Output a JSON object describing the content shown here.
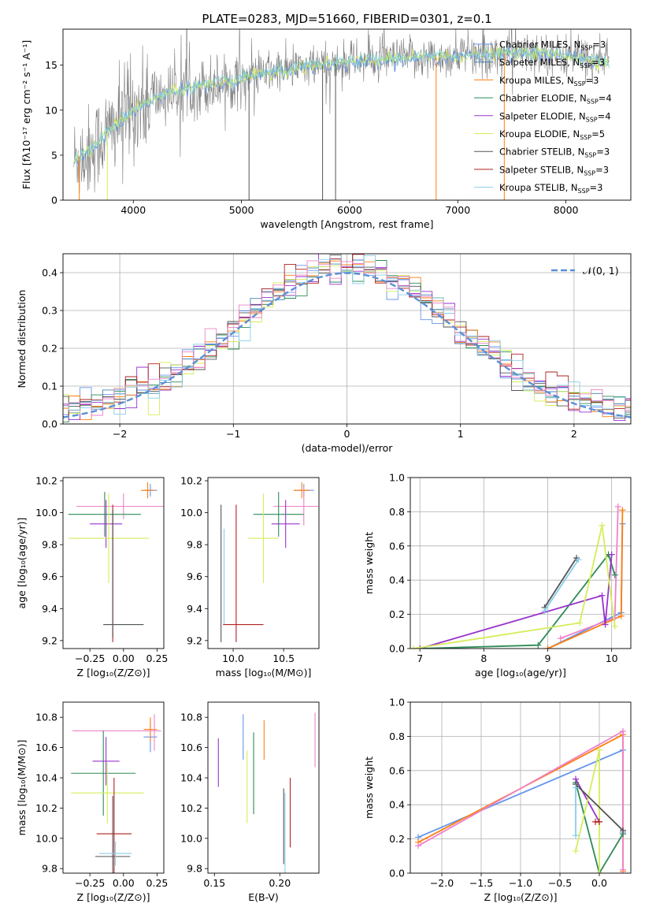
{
  "chart_data": [
    {
      "id": "spectrum",
      "type": "line",
      "title": "PLATE=0283, MJD=51660, FIBERID=0301, z=0.1",
      "xlabel": "wavelength [Angstrom, rest frame]",
      "ylabel": "Flux [fλ10⁻¹⁷ erg cm⁻² s⁻¹ A⁻¹]",
      "xlim": [
        3350,
        8600
      ],
      "ylim": [
        0,
        19
      ],
      "xticks": [
        4000,
        5000,
        6000,
        7000,
        8000
      ],
      "yticks": [
        0,
        5,
        10,
        15
      ],
      "grid": false,
      "legend_position": "top-right",
      "legend": [
        {
          "label": "Chabrier MILES, N",
          "sub": "SSP",
          "suffix": "=3",
          "color": "#6495ed"
        },
        {
          "label": "Salpeter MILES, N",
          "sub": "SSP",
          "suffix": "=3",
          "color": "#4682b4"
        },
        {
          "label": "Kroupa MILES, N",
          "sub": "SSP",
          "suffix": "=3",
          "color": "#ff7f0e"
        },
        {
          "label": "Chabrier ELODIE, N",
          "sub": "SSP",
          "suffix": "=4",
          "color": "#2e8b57"
        },
        {
          "label": "Salpeter ELODIE, N",
          "sub": "SSP",
          "suffix": "=4",
          "color": "#9932cc"
        },
        {
          "label": "Kroupa ELODIE, N",
          "sub": "SSP",
          "suffix": "=5",
          "color": "#d4ed5a"
        },
        {
          "label": "Chabrier STELIB, N",
          "sub": "SSP",
          "suffix": "=3",
          "color": "#555555"
        },
        {
          "label": "Salpeter STELIB, N",
          "sub": "SSP",
          "suffix": "=3",
          "color": "#b22222"
        },
        {
          "label": "Kroupa STELIB, N",
          "sub": "SSP",
          "suffix": "=3",
          "color": "#87ceeb"
        }
      ],
      "data_color": "#808080",
      "model_colors": [
        "#6495ed",
        "#d4ed5a",
        "#7fd6d6"
      ],
      "continuum": {
        "x": [
          3450,
          3600,
          3800,
          4000,
          4200,
          4500,
          4800,
          5000,
          5300,
          5600,
          6000,
          6300,
          6600,
          7000,
          7400,
          7700,
          8000,
          8200,
          8400
        ],
        "y": [
          4.5,
          5.5,
          8.0,
          10.0,
          11.3,
          12.5,
          13.0,
          13.5,
          14.2,
          14.8,
          15.3,
          15.6,
          15.8,
          16.0,
          16.3,
          16.4,
          16.1,
          15.7,
          15.2
        ]
      }
    },
    {
      "id": "residuals",
      "type": "histogram",
      "xlabel": "(data-model)/error",
      "ylabel": "Normed distribution",
      "xlim": [
        -2.5,
        2.5
      ],
      "ylim": [
        0,
        0.45
      ],
      "xticks": [
        -2,
        -1,
        0,
        1,
        2
      ],
      "yticks": [
        0.0,
        0.1,
        0.2,
        0.3,
        0.4
      ],
      "grid": true,
      "legend_position": "top-right",
      "legend": [
        {
          "label": "𝒩(0, 1)",
          "color": "#5b8fd6"
        }
      ],
      "bin_width": 0.1,
      "series_colors": [
        "#6495ed",
        "#4682b4",
        "#ff7f0e",
        "#2e8b57",
        "#9932cc",
        "#d4ed5a",
        "#555555",
        "#b22222",
        "#87ceeb",
        "#ee82c8"
      ]
    },
    {
      "id": "age-vs-Z",
      "type": "errorbar",
      "xlabel": "Z [log₁₀(Z/Z⊙)]",
      "ylabel": "age  [log₁₀(age/yr)]",
      "xlim": [
        -0.45,
        0.3
      ],
      "ylim": [
        9.15,
        10.22
      ],
      "xticks": [
        -0.25,
        0.0,
        0.25
      ],
      "yticks": [
        9.2,
        9.4,
        9.6,
        9.8,
        10.0,
        10.2
      ],
      "points": [
        {
          "x": 0.2,
          "y": 10.14,
          "xerr": 0.05,
          "yerr": 0.04,
          "color": "#6495ed"
        },
        {
          "x": 0.18,
          "y": 10.14,
          "xerr": 0.05,
          "yerr": 0.05,
          "color": "#ff7f0e"
        },
        {
          "x": 0.0,
          "y": 10.04,
          "xerr": 0.35,
          "yerr": 0.08,
          "color": "#ee82c8"
        },
        {
          "x": -0.14,
          "y": 9.99,
          "xerr": 0.27,
          "yerr": 0.14,
          "color": "#2e8b57"
        },
        {
          "x": -0.13,
          "y": 9.93,
          "xerr": 0.12,
          "yerr": 0.15,
          "color": "#9932cc"
        },
        {
          "x": -0.11,
          "y": 9.84,
          "xerr": 0.3,
          "yerr": 0.28,
          "color": "#d4ed5a"
        },
        {
          "x": -0.08,
          "y": 9.62,
          "xerr": 0.0,
          "yerr": 0.43,
          "color": "#b22222"
        },
        {
          "x": -0.08,
          "y": 9.62,
          "xerr": 0.0,
          "yerr": 0.4,
          "color": "#555555"
        },
        {
          "x": 0.0,
          "y": 9.3,
          "xerr": 0.15,
          "yerr": 0.0,
          "color": "#87ceeb"
        },
        {
          "x": 0.0,
          "y": 9.3,
          "xerr": 0.15,
          "yerr": 0.0,
          "color": "#555555"
        }
      ]
    },
    {
      "id": "age-vs-mass",
      "type": "errorbar",
      "xlabel": "mass [log₁₀(M/M⊙)]",
      "ylabel": "",
      "xlim": [
        9.75,
        10.85
      ],
      "ylim": [
        9.15,
        10.22
      ],
      "xticks": [
        10.0,
        10.5
      ],
      "yticks": [
        9.2,
        9.4,
        9.6,
        9.8,
        10.0,
        10.2
      ],
      "points": [
        {
          "x": 10.7,
          "y": 10.14,
          "xerr": 0.1,
          "yerr": 0.04,
          "color": "#6495ed"
        },
        {
          "x": 10.68,
          "y": 10.14,
          "xerr": 0.08,
          "yerr": 0.05,
          "color": "#ff7f0e"
        },
        {
          "x": 10.7,
          "y": 10.04,
          "xerr": 0.3,
          "yerr": 0.12,
          "color": "#ee82c8"
        },
        {
          "x": 10.45,
          "y": 9.99,
          "xerr": 0.25,
          "yerr": 0.14,
          "color": "#2e8b57"
        },
        {
          "x": 10.52,
          "y": 9.93,
          "xerr": 0.14,
          "yerr": 0.15,
          "color": "#9932cc"
        },
        {
          "x": 10.3,
          "y": 9.84,
          "xerr": 0.15,
          "yerr": 0.28,
          "color": "#d4ed5a"
        },
        {
          "x": 10.03,
          "y": 9.62,
          "xerr": 0.0,
          "yerr": 0.43,
          "color": "#b22222"
        },
        {
          "x": 9.88,
          "y": 9.62,
          "xerr": 0.0,
          "yerr": 0.43,
          "color": "#555555"
        },
        {
          "x": 9.91,
          "y": 9.6,
          "xerr": 0.0,
          "yerr": 0.3,
          "color": "#87ceeb"
        },
        {
          "x": 10.1,
          "y": 9.3,
          "xerr": 0.2,
          "yerr": 0.0,
          "color": "#b22222"
        }
      ]
    },
    {
      "id": "weight-vs-age",
      "type": "line",
      "xlabel": "age  [log₁₀(age/yr)]",
      "ylabel": "mass weight",
      "xlim": [
        6.85,
        10.3
      ],
      "ylim": [
        0,
        1
      ],
      "xticks": [
        7,
        8,
        9,
        10
      ],
      "yticks": [
        0.0,
        0.2,
        0.4,
        0.6,
        0.8,
        1.0
      ],
      "grid": true,
      "series": [
        {
          "color": "#6495ed",
          "x": [
            9.0,
            10.15,
            10.17
          ],
          "y": [
            0.0,
            0.21,
            0.73
          ]
        },
        {
          "color": "#ff7f0e",
          "x": [
            9.0,
            10.15,
            10.17
          ],
          "y": [
            0.0,
            0.19,
            0.81
          ]
        },
        {
          "color": "#ee82c8",
          "x": [
            9.2,
            10.05,
            10.1
          ],
          "y": [
            0.06,
            0.18,
            0.83
          ]
        },
        {
          "color": "#2e8b57",
          "x": [
            7.0,
            8.85,
            9.95,
            10.05
          ],
          "y": [
            0.0,
            0.02,
            0.55,
            0.43
          ]
        },
        {
          "color": "#9932cc",
          "x": [
            7.0,
            9.85,
            9.9,
            10.0
          ],
          "y": [
            0.0,
            0.31,
            0.14,
            0.55
          ]
        },
        {
          "color": "#d4ed5a",
          "x": [
            6.9,
            9.5,
            9.85,
            10.05
          ],
          "y": [
            0.0,
            0.15,
            0.72,
            0.13
          ]
        },
        {
          "color": "#555555",
          "x": [
            8.95,
            9.45
          ],
          "y": [
            0.24,
            0.53
          ]
        },
        {
          "color": "#87ceeb",
          "x": [
            8.95,
            9.48
          ],
          "y": [
            0.22,
            0.52
          ]
        }
      ]
    },
    {
      "id": "mass-vs-Z",
      "type": "errorbar",
      "xlabel": "Z [log₁₀(Z/Z⊙)]",
      "ylabel": "mass [log₁₀(M/M⊙)]",
      "xlim": [
        -0.45,
        0.3
      ],
      "ylim": [
        9.77,
        10.9
      ],
      "xticks": [
        -0.25,
        0.0,
        0.25
      ],
      "yticks": [
        9.8,
        10.0,
        10.2,
        10.4,
        10.6,
        10.8
      ],
      "points": [
        {
          "x": 0.2,
          "y": 10.67,
          "xerr": 0.05,
          "yerr": 0.1,
          "color": "#6495ed"
        },
        {
          "x": 0.2,
          "y": 10.72,
          "xerr": 0.05,
          "yerr": 0.08,
          "color": "#ff7f0e"
        },
        {
          "x": -0.05,
          "y": 10.71,
          "xerr": 0.33,
          "yerr": 0.0,
          "color": "#ee82c8"
        },
        {
          "x": 0.23,
          "y": 10.7,
          "xerr": 0.0,
          "yerr": 0.12,
          "color": "#ee82c8"
        },
        {
          "x": -0.15,
          "y": 10.43,
          "xerr": 0.24,
          "yerr": 0.28,
          "color": "#2e8b57"
        },
        {
          "x": -0.13,
          "y": 10.51,
          "xerr": 0.1,
          "yerr": 0.16,
          "color": "#9932cc"
        },
        {
          "x": -0.12,
          "y": 10.3,
          "xerr": 0.27,
          "yerr": 0.2,
          "color": "#d4ed5a"
        },
        {
          "x": -0.07,
          "y": 10.03,
          "xerr": 0.13,
          "yerr": 0.37,
          "color": "#b22222"
        },
        {
          "x": -0.08,
          "y": 9.88,
          "xerr": 0.13,
          "yerr": 0.4,
          "color": "#555555"
        },
        {
          "x": -0.06,
          "y": 9.9,
          "xerr": 0.12,
          "yerr": 0.08,
          "color": "#87ceeb"
        }
      ]
    },
    {
      "id": "mass-vs-ebv",
      "type": "errorbar",
      "xlabel": "E(B-V)",
      "ylabel": "",
      "xlim": [
        0.145,
        0.23
      ],
      "ylim": [
        9.77,
        10.9
      ],
      "xticks": [
        0.15,
        0.2
      ],
      "yticks": [
        9.8,
        10.0,
        10.2,
        10.4,
        10.6,
        10.8
      ],
      "points": [
        {
          "x": 0.172,
          "y": 10.67,
          "yerr": 0.15,
          "color": "#6495ed"
        },
        {
          "x": 0.188,
          "y": 10.65,
          "yerr": 0.13,
          "color": "#ff7f0e"
        },
        {
          "x": 0.227,
          "y": 10.65,
          "yerr": 0.18,
          "color": "#ee82c8"
        },
        {
          "x": 0.18,
          "y": 10.43,
          "yerr": 0.27,
          "color": "#2e8b57"
        },
        {
          "x": 0.153,
          "y": 10.5,
          "yerr": 0.16,
          "color": "#9932cc"
        },
        {
          "x": 0.175,
          "y": 10.34,
          "yerr": 0.24,
          "color": "#d4ed5a"
        },
        {
          "x": 0.208,
          "y": 10.17,
          "yerr": 0.23,
          "color": "#b22222"
        },
        {
          "x": 0.203,
          "y": 10.08,
          "yerr": 0.25,
          "color": "#555555"
        },
        {
          "x": 0.204,
          "y": 10.0,
          "yerr": 0.3,
          "color": "#87ceeb"
        }
      ]
    },
    {
      "id": "weight-vs-Z",
      "type": "line",
      "xlabel": "Z [log₁₀(Z/Z⊙)]",
      "ylabel": "mass weight",
      "xlim": [
        -2.4,
        0.4
      ],
      "ylim": [
        0,
        1
      ],
      "xticks": [
        -2.0,
        -1.5,
        -1.0,
        -0.5,
        0.0
      ],
      "yticks": [
        0.0,
        0.2,
        0.4,
        0.6,
        0.8,
        1.0
      ],
      "grid": true,
      "series": [
        {
          "color": "#6495ed",
          "x": [
            -2.3,
            0.3,
            0.3
          ],
          "y": [
            0.21,
            0.72,
            0.24
          ]
        },
        {
          "color": "#ff7f0e",
          "x": [
            -2.3,
            0.3,
            0.3
          ],
          "y": [
            0.18,
            0.81,
            0.01
          ]
        },
        {
          "color": "#ee82c8",
          "x": [
            -2.3,
            0.3,
            0.3
          ],
          "y": [
            0.16,
            0.83,
            0.02
          ]
        },
        {
          "color": "#2e8b57",
          "x": [
            -0.3,
            0.0,
            0.3
          ],
          "y": [
            0.53,
            0.0,
            0.23
          ]
        },
        {
          "color": "#9932cc",
          "x": [
            -0.3,
            0.0
          ],
          "y": [
            0.55,
            0.3
          ]
        },
        {
          "color": "#d4ed5a",
          "x": [
            -0.3,
            0.0,
            0.0
          ],
          "y": [
            0.13,
            0.72,
            0.0
          ]
        },
        {
          "color": "#555555",
          "x": [
            -0.3,
            0.3
          ],
          "y": [
            0.52,
            0.25
          ]
        },
        {
          "color": "#87ceeb",
          "x": [
            -0.3,
            -0.3
          ],
          "y": [
            0.5,
            0.22
          ]
        },
        {
          "color": "#b22222",
          "x": [
            -0.05,
            0.0
          ],
          "y": [
            0.3,
            0.3
          ]
        }
      ]
    }
  ]
}
